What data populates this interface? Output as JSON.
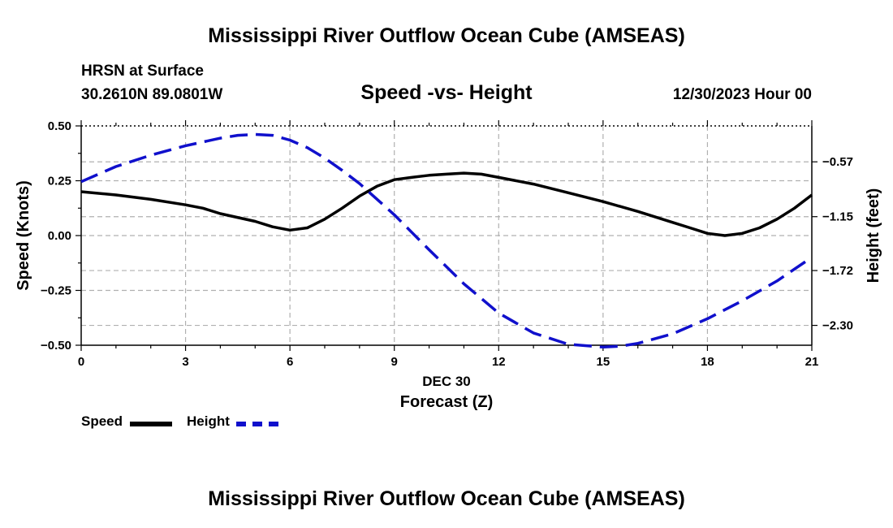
{
  "header": {
    "main_title": "Mississippi River Outflow Ocean Cube (AMSEAS)",
    "station": "HRSN at Surface",
    "coords": "30.2610N  89.0801W",
    "datetime": "12/30/2023 Hour 00"
  },
  "footer": {
    "title": "Mississippi River Outflow Ocean Cube (AMSEAS)"
  },
  "legend": {
    "speed_label": "Speed",
    "height_label": "Height"
  },
  "colors": {
    "speed": "#000000",
    "height": "#1010cc",
    "grid": "#b0b0b0"
  },
  "chart_data": {
    "type": "line",
    "title": "Speed -vs- Height",
    "xlabel": "Forecast (Z)",
    "date_label": "DEC 30",
    "ylabel_left": "Speed (Knots)",
    "ylabel_right": "Height (feet)",
    "xlim": [
      0,
      21
    ],
    "ylim_left": [
      -0.5,
      0.5
    ],
    "ylim_right": [
      -2.51,
      -0.19
    ],
    "x_ticks": [
      0,
      3,
      6,
      9,
      12,
      15,
      18,
      21
    ],
    "left_ticks": [
      -0.5,
      -0.25,
      0.0,
      0.25,
      0.5
    ],
    "left_tick_labels": [
      "−0.50",
      "−0.25",
      "0.00",
      "0.25",
      "0.50"
    ],
    "right_ticks": [
      -2.3,
      -1.72,
      -1.15,
      -0.57
    ],
    "right_tick_labels": [
      "−2.30",
      "−1.72",
      "−1.15",
      "−0.57"
    ],
    "grid": true,
    "series": [
      {
        "name": "Speed",
        "axis": "left",
        "style": "solid",
        "x": [
          0,
          1,
          2,
          3,
          3.5,
          4,
          5,
          5.5,
          6,
          6.5,
          7,
          7.5,
          8,
          8.5,
          9,
          9.5,
          10,
          10.5,
          11,
          11.5,
          12,
          13,
          14,
          15,
          16,
          17,
          17.5,
          18,
          18.5,
          19,
          19.5,
          20,
          20.5,
          21
        ],
        "values": [
          0.2,
          0.185,
          0.165,
          0.14,
          0.125,
          0.1,
          0.065,
          0.04,
          0.025,
          0.035,
          0.075,
          0.125,
          0.18,
          0.225,
          0.255,
          0.265,
          0.275,
          0.28,
          0.285,
          0.28,
          0.265,
          0.235,
          0.195,
          0.155,
          0.11,
          0.06,
          0.035,
          0.01,
          0.0,
          0.01,
          0.035,
          0.075,
          0.125,
          0.185
        ]
      },
      {
        "name": "Height",
        "axis": "right",
        "style": "dashed",
        "x": [
          0,
          1,
          2,
          3,
          4,
          4.5,
          5,
          5.5,
          6,
          6.5,
          7,
          7.5,
          8,
          9,
          10,
          11,
          12,
          13,
          14,
          15,
          15.5,
          16,
          17,
          18,
          19,
          20,
          21
        ],
        "values": [
          -0.78,
          -0.62,
          -0.5,
          -0.4,
          -0.32,
          -0.29,
          -0.28,
          -0.29,
          -0.34,
          -0.42,
          -0.53,
          -0.66,
          -0.8,
          -1.13,
          -1.5,
          -1.86,
          -2.17,
          -2.38,
          -2.5,
          -2.53,
          -2.52,
          -2.49,
          -2.39,
          -2.23,
          -2.04,
          -1.83,
          -1.58
        ]
      }
    ]
  }
}
